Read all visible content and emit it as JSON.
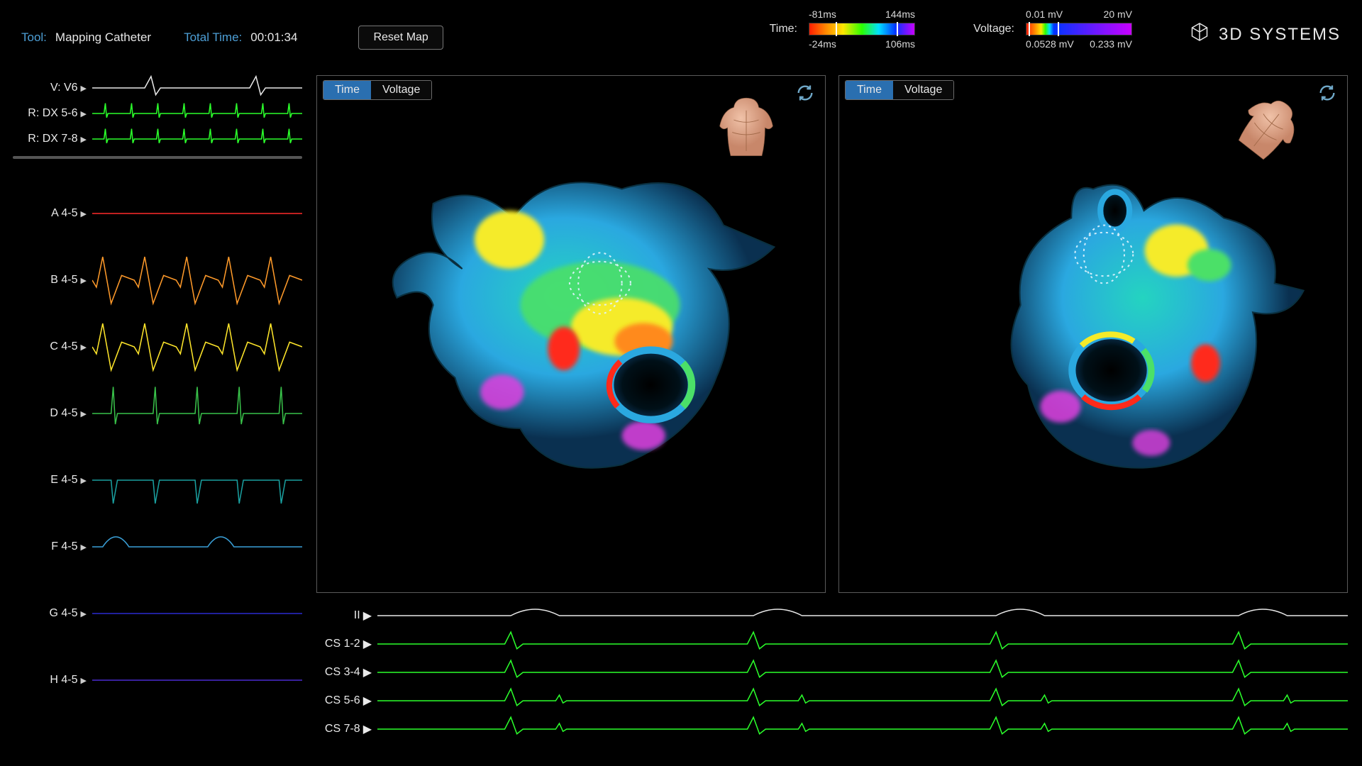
{
  "topbar": {
    "tool_label": "Tool:",
    "tool_value": "Mapping Catheter",
    "time_label": "Total Time:",
    "time_value": "00:01:34",
    "reset_label": "Reset Map"
  },
  "scales": {
    "time": {
      "label": "Time:",
      "top_left": "-81ms",
      "top_right": "144ms",
      "bot_left": "-24ms",
      "bot_right": "106ms",
      "mark_left_pct": 25,
      "mark_right_pct": 83,
      "gradient": "rainbow"
    },
    "voltage": {
      "label": "Voltage:",
      "top_left": "0.01 mV",
      "top_right": "20 mV",
      "bot_left": "0.0528 mV",
      "bot_right": "0.233 mV",
      "mark_left_pct": 2,
      "mark_right_pct": 30,
      "gradient": "voltage"
    }
  },
  "brand": {
    "text": "3D SYSTEMS"
  },
  "left_signals": {
    "top": [
      {
        "label": "V: V6",
        "color": "#e8e8e8",
        "pattern": "ecg1"
      },
      {
        "label": "R: DX 5-6",
        "color": "#2bff2b",
        "pattern": "ecg2"
      },
      {
        "label": "R: DX 7-8",
        "color": "#2bff2b",
        "pattern": "ecg2"
      }
    ],
    "bottom": [
      {
        "label": "A 4-5",
        "color": "#ff2a2a",
        "pattern": "flat"
      },
      {
        "label": "B 4-5",
        "color": "#ff9a2a",
        "pattern": "qrs"
      },
      {
        "label": "C 4-5",
        "color": "#ffe62a",
        "pattern": "qrs"
      },
      {
        "label": "D 4-5",
        "color": "#39c24a",
        "pattern": "spike"
      },
      {
        "label": "E 4-5",
        "color": "#1aa0a0",
        "pattern": "dip"
      },
      {
        "label": "F 4-5",
        "color": "#3aa0d8",
        "pattern": "bump"
      },
      {
        "label": "G 4-5",
        "color": "#2a2ad0",
        "pattern": "flat"
      },
      {
        "label": "H 4-5",
        "color": "#4a2ad0",
        "pattern": "flat"
      }
    ]
  },
  "viewports": [
    {
      "tabs": [
        "Time",
        "Voltage"
      ],
      "active": 0,
      "torso_rotate": 0
    },
    {
      "tabs": [
        "Time",
        "Voltage"
      ],
      "active": 0,
      "torso_rotate": 38
    }
  ],
  "bottom_signals": [
    {
      "label": "II",
      "color": "#e8e8e8",
      "pattern": "ecg3"
    },
    {
      "label": "CS 1-2",
      "color": "#2bff2b",
      "pattern": "spike4"
    },
    {
      "label": "CS 3-4",
      "color": "#2bff2b",
      "pattern": "spike4"
    },
    {
      "label": "CS 5-6",
      "color": "#2bff2b",
      "pattern": "spike4b"
    },
    {
      "label": "CS 7-8",
      "color": "#2bff2b",
      "pattern": "spike4b"
    }
  ],
  "heart_colors": {
    "base": "#2aa8e0",
    "teal": "#24d4c0",
    "green": "#4be068",
    "yellow": "#f5eb2a",
    "orange": "#ff8a1a",
    "red": "#ff2a1a",
    "magenta": "#e040e0",
    "dark": "#0a3050"
  }
}
